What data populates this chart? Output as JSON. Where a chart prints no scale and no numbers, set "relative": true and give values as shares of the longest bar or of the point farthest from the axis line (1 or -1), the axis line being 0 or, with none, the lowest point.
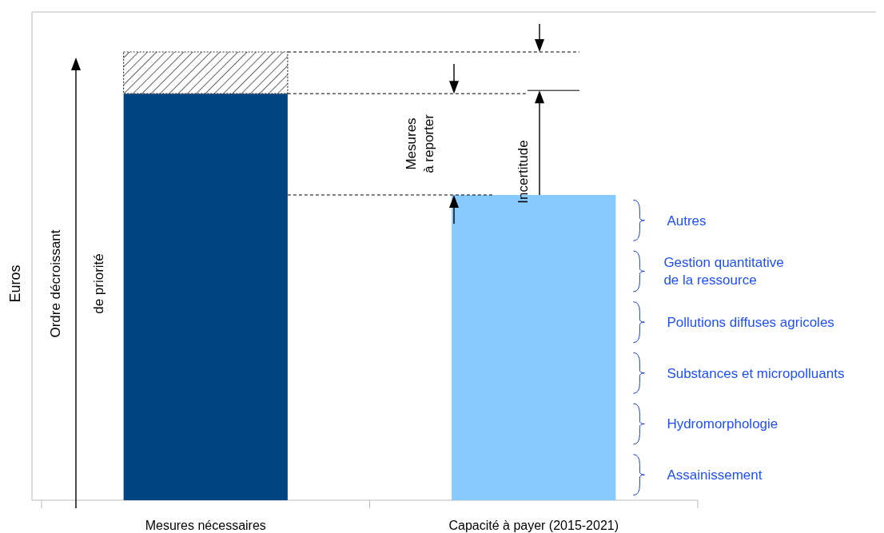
{
  "chart_data": {
    "type": "bar",
    "relative": true,
    "stacked": true,
    "ylabel": "Euros",
    "categories": [
      "Mesures nécessaires",
      "Capacité à payer (2015-2021)"
    ],
    "series": [
      {
        "colors": [
          "#004482",
          "#87caff"
        ],
        "values": [
          0.907,
          0.681
        ]
      },
      {
        "color": "#333333",
        "values": [
          0.093,
          null
        ]
      }
    ],
    "annotations": [
      "Ordre décroissant\nde priorité",
      "Mesures\nà reporter",
      "Incertitude",
      "Assainissement",
      "Hydromorphologie",
      "Substances et micropolluants",
      "Pollutions diffuses agricoles",
      "Gestion quantitative\nde la ressource",
      "Autres"
    ],
    "ref_lines": [
      {
        "axis": "y",
        "value": 1,
        "line_style": "dashed",
        "color": "#000000"
      },
      {
        "axis": "y",
        "value": 0.907,
        "line_style": "dashed",
        "color": "#000000"
      },
      {
        "axis": "y",
        "value": 0.681,
        "line_style": "dashed",
        "color": "#000000"
      }
    ]
  }
}
